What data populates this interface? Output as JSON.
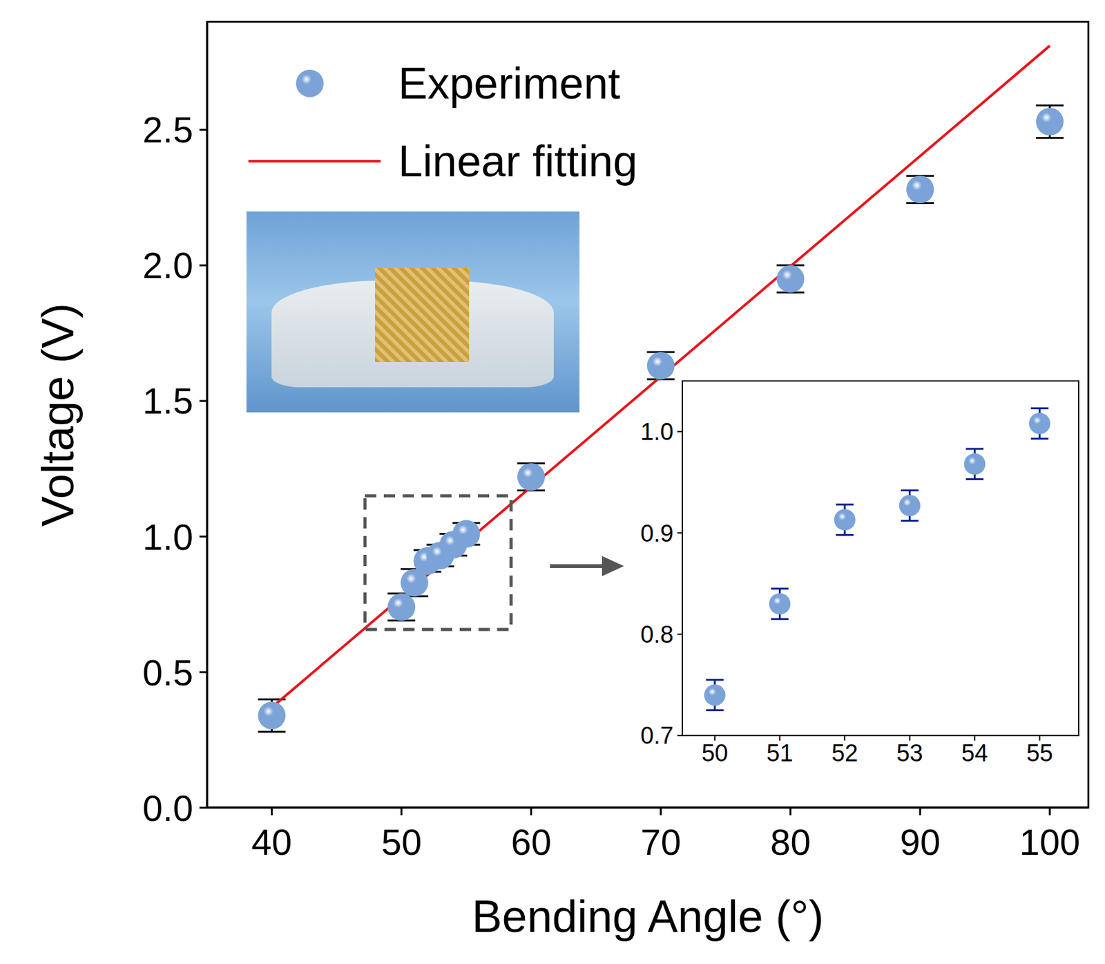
{
  "chart_data": [
    {
      "type": "scatter",
      "x_label": "Bending Angle (°)",
      "y_label": "Voltage (V)",
      "xlim": [
        35,
        103
      ],
      "ylim": [
        0,
        2.9
      ],
      "xticks": [
        40,
        50,
        60,
        70,
        80,
        90,
        100
      ],
      "yticks": [
        {
          "value": 0,
          "label": "0.0"
        },
        0.5,
        {
          "value": 1,
          "label": "1.0"
        },
        1.5,
        {
          "value": 2,
          "label": "2.0"
        },
        2.5
      ],
      "legend": "upper left",
      "series": [
        {
          "name": "Experiment",
          "type": "scatter",
          "color": "#7ba3d8",
          "marker": "circle",
          "x": [
            40,
            50,
            51,
            52,
            53,
            54,
            55,
            60,
            70,
            80,
            90,
            100
          ],
          "values": [
            0.34,
            0.74,
            0.83,
            0.91,
            0.93,
            0.97,
            1.01,
            1.22,
            1.63,
            1.95,
            2.28,
            2.53
          ],
          "errors": [
            0.06,
            0.05,
            0.05,
            0.04,
            0.04,
            0.04,
            0.04,
            0.05,
            0.05,
            0.05,
            0.05,
            0.06
          ]
        },
        {
          "name": "Linear fitting",
          "type": "line",
          "color": "#e8141b",
          "line_style": "solid",
          "x": [
            40,
            100
          ],
          "values": [
            0.37,
            2.81
          ]
        }
      ]
    },
    {
      "type": "scatter",
      "xlim": [
        49.5,
        55.6
      ],
      "ylim": [
        0.7,
        1.05
      ],
      "xticks": [
        50,
        51,
        52,
        53,
        54,
        55
      ],
      "yticks": [
        0.7,
        0.8,
        0.9,
        {
          "value": 1,
          "label": "1.0"
        }
      ],
      "series": [
        {
          "type": "scatter",
          "color": "#7ba3d8",
          "marker": "circle",
          "x": [
            50,
            51,
            52,
            53,
            54,
            55
          ],
          "values": [
            0.74,
            0.83,
            0.913,
            0.927,
            0.968,
            1.008
          ],
          "errors": [
            0.015,
            0.015,
            0.015,
            0.015,
            0.015,
            0.015
          ]
        }
      ]
    }
  ]
}
